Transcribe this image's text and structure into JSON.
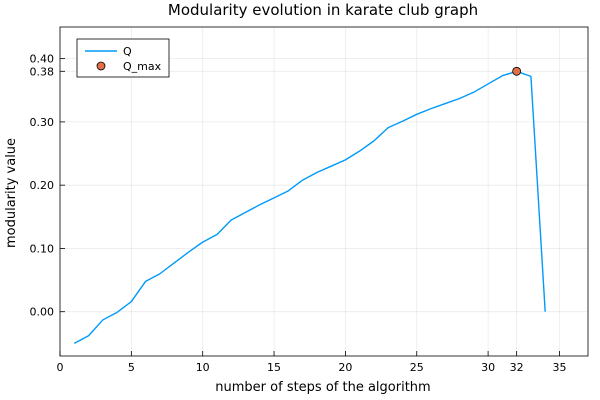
{
  "chart_data": {
    "type": "line",
    "title": "Modularity evolution in karate club graph",
    "xlabel": "number of steps of the algorithm",
    "ylabel": "modularity value",
    "xlim": [
      0,
      37
    ],
    "ylim": [
      -0.07,
      0.45
    ],
    "xticks": [
      0,
      5,
      10,
      15,
      20,
      25,
      30,
      32,
      35
    ],
    "yticks": [
      0.0,
      0.1,
      0.2,
      0.3,
      0.38,
      0.4
    ],
    "ytick_labels": [
      "0.00",
      "0.10",
      "0.20",
      "0.30",
      "0.38",
      "0.40"
    ],
    "grid": true,
    "legend_position": "top-left",
    "series": [
      {
        "name": "Q",
        "color": "#009AFA",
        "x": [
          1,
          2,
          3,
          4,
          5,
          6,
          7,
          8,
          9,
          10,
          11,
          12,
          13,
          14,
          15,
          16,
          17,
          18,
          19,
          20,
          21,
          22,
          23,
          24,
          25,
          26,
          27,
          28,
          29,
          30,
          31,
          32,
          33,
          34
        ],
        "y": [
          -0.05,
          -0.038,
          -0.013,
          -0.001,
          0.016,
          0.048,
          0.06,
          0.077,
          0.094,
          0.11,
          0.122,
          0.145,
          0.157,
          0.169,
          0.18,
          0.191,
          0.208,
          0.22,
          0.23,
          0.24,
          0.254,
          0.27,
          0.291,
          0.301,
          0.312,
          0.321,
          0.329,
          0.337,
          0.347,
          0.36,
          0.373,
          0.38,
          0.372,
          0.0
        ]
      }
    ],
    "markers": [
      {
        "name": "Q_max",
        "color": "#E26F46",
        "x": 32,
        "y": 0.38
      }
    ]
  }
}
